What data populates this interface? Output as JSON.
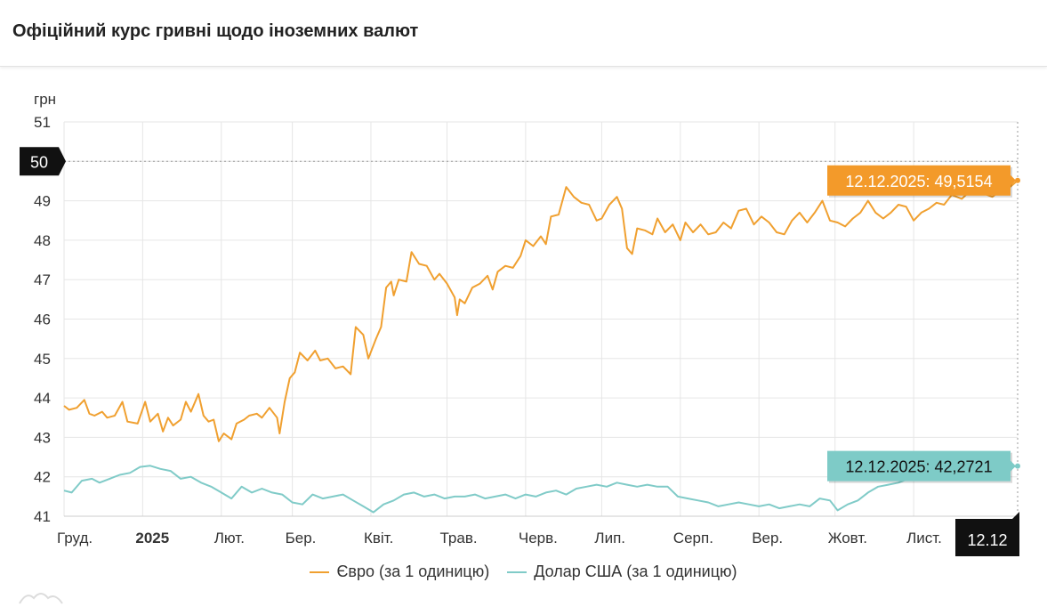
{
  "header": {
    "title": "Офіційний курс гривні щодо іноземних валют"
  },
  "colors": {
    "euro": "#f0a030",
    "usd": "#80cbc8",
    "grid": "#e6e6e6",
    "dark": "#111111"
  },
  "crosshair": {
    "y_label": "50",
    "x_label": "12.12"
  },
  "chart_data": {
    "type": "line",
    "ylabel": "грн",
    "ylim": [
      41,
      51
    ],
    "yticks": [
      "41",
      "42",
      "43",
      "44",
      "45",
      "46",
      "47",
      "48",
      "49",
      "50",
      "51"
    ],
    "x_range": [
      "2024-12-01",
      "2025-12-12"
    ],
    "x_ticks": [
      {
        "date": "2024-12-01",
        "label": "Груд.",
        "bold": false
      },
      {
        "date": "2025-01-01",
        "label": "2025",
        "bold": true
      },
      {
        "date": "2025-02-01",
        "label": "Лют.",
        "bold": false
      },
      {
        "date": "2025-03-01",
        "label": "Бер.",
        "bold": false
      },
      {
        "date": "2025-04-01",
        "label": "Квіт.",
        "bold": false
      },
      {
        "date": "2025-05-01",
        "label": "Трав.",
        "bold": false
      },
      {
        "date": "2025-06-01",
        "label": "Черв.",
        "bold": false
      },
      {
        "date": "2025-07-01",
        "label": "Лип.",
        "bold": false
      },
      {
        "date": "2025-08-01",
        "label": "Серп.",
        "bold": false
      },
      {
        "date": "2025-09-01",
        "label": "Вер.",
        "bold": false
      },
      {
        "date": "2025-10-01",
        "label": "Жовт.",
        "bold": false
      },
      {
        "date": "2025-11-01",
        "label": "Лист.",
        "bold": false
      }
    ],
    "series": [
      {
        "name": "Євро (за 1 одиницю)",
        "color": "#f0a030",
        "tooltip": "12.12.2025: 49,5154",
        "points": [
          [
            "2024-12-01",
            43.8
          ],
          [
            "2024-12-03",
            43.7
          ],
          [
            "2024-12-06",
            43.75
          ],
          [
            "2024-12-09",
            43.95
          ],
          [
            "2024-12-11",
            43.6
          ],
          [
            "2024-12-13",
            43.55
          ],
          [
            "2024-12-16",
            43.65
          ],
          [
            "2024-12-18",
            43.5
          ],
          [
            "2024-12-21",
            43.55
          ],
          [
            "2024-12-24",
            43.9
          ],
          [
            "2024-12-26",
            43.4
          ],
          [
            "2024-12-30",
            43.35
          ],
          [
            "2025-01-02",
            43.9
          ],
          [
            "2025-01-04",
            43.4
          ],
          [
            "2025-01-07",
            43.6
          ],
          [
            "2025-01-09",
            43.15
          ],
          [
            "2025-01-11",
            43.5
          ],
          [
            "2025-01-13",
            43.3
          ],
          [
            "2025-01-16",
            43.45
          ],
          [
            "2025-01-18",
            43.9
          ],
          [
            "2025-01-20",
            43.65
          ],
          [
            "2025-01-23",
            44.1
          ],
          [
            "2025-01-25",
            43.55
          ],
          [
            "2025-01-27",
            43.4
          ],
          [
            "2025-01-29",
            43.45
          ],
          [
            "2025-01-31",
            42.9
          ],
          [
            "2025-02-02",
            43.1
          ],
          [
            "2025-02-05",
            42.95
          ],
          [
            "2025-02-07",
            43.35
          ],
          [
            "2025-02-10",
            43.45
          ],
          [
            "2025-02-12",
            43.55
          ],
          [
            "2025-02-15",
            43.6
          ],
          [
            "2025-02-17",
            43.5
          ],
          [
            "2025-02-20",
            43.75
          ],
          [
            "2025-02-23",
            43.5
          ],
          [
            "2025-02-24",
            43.1
          ],
          [
            "2025-02-26",
            43.9
          ],
          [
            "2025-02-28",
            44.5
          ],
          [
            "2025-03-02",
            44.65
          ],
          [
            "2025-03-04",
            45.15
          ],
          [
            "2025-03-07",
            44.95
          ],
          [
            "2025-03-10",
            45.2
          ],
          [
            "2025-03-12",
            44.95
          ],
          [
            "2025-03-15",
            45.0
          ],
          [
            "2025-03-18",
            44.75
          ],
          [
            "2025-03-21",
            44.8
          ],
          [
            "2025-03-24",
            44.6
          ],
          [
            "2025-03-26",
            45.8
          ],
          [
            "2025-03-29",
            45.6
          ],
          [
            "2025-03-31",
            45.0
          ],
          [
            "2025-04-03",
            45.5
          ],
          [
            "2025-04-05",
            45.8
          ],
          [
            "2025-04-07",
            46.8
          ],
          [
            "2025-04-09",
            46.95
          ],
          [
            "2025-04-10",
            46.6
          ],
          [
            "2025-04-12",
            47.0
          ],
          [
            "2025-04-15",
            46.95
          ],
          [
            "2025-04-17",
            47.7
          ],
          [
            "2025-04-20",
            47.4
          ],
          [
            "2025-04-23",
            47.35
          ],
          [
            "2025-04-26",
            47.0
          ],
          [
            "2025-04-28",
            47.15
          ],
          [
            "2025-05-01",
            46.9
          ],
          [
            "2025-05-04",
            46.55
          ],
          [
            "2025-05-05",
            46.1
          ],
          [
            "2025-05-06",
            46.5
          ],
          [
            "2025-05-08",
            46.4
          ],
          [
            "2025-05-11",
            46.8
          ],
          [
            "2025-05-14",
            46.9
          ],
          [
            "2025-05-17",
            47.1
          ],
          [
            "2025-05-19",
            46.75
          ],
          [
            "2025-05-21",
            47.2
          ],
          [
            "2025-05-24",
            47.35
          ],
          [
            "2025-05-27",
            47.3
          ],
          [
            "2025-05-30",
            47.6
          ],
          [
            "2025-06-01",
            48.0
          ],
          [
            "2025-06-04",
            47.85
          ],
          [
            "2025-06-07",
            48.1
          ],
          [
            "2025-06-09",
            47.9
          ],
          [
            "2025-06-11",
            48.6
          ],
          [
            "2025-06-14",
            48.65
          ],
          [
            "2025-06-17",
            49.35
          ],
          [
            "2025-06-20",
            49.1
          ],
          [
            "2025-06-23",
            48.95
          ],
          [
            "2025-06-26",
            48.9
          ],
          [
            "2025-06-29",
            48.5
          ],
          [
            "2025-07-01",
            48.55
          ],
          [
            "2025-07-04",
            48.9
          ],
          [
            "2025-07-07",
            49.1
          ],
          [
            "2025-07-09",
            48.8
          ],
          [
            "2025-07-11",
            47.8
          ],
          [
            "2025-07-13",
            47.65
          ],
          [
            "2025-07-15",
            48.3
          ],
          [
            "2025-07-18",
            48.25
          ],
          [
            "2025-07-21",
            48.15
          ],
          [
            "2025-07-23",
            48.55
          ],
          [
            "2025-07-26",
            48.2
          ],
          [
            "2025-07-29",
            48.4
          ],
          [
            "2025-08-01",
            48.0
          ],
          [
            "2025-08-03",
            48.45
          ],
          [
            "2025-08-06",
            48.2
          ],
          [
            "2025-08-09",
            48.4
          ],
          [
            "2025-08-12",
            48.15
          ],
          [
            "2025-08-15",
            48.2
          ],
          [
            "2025-08-18",
            48.45
          ],
          [
            "2025-08-21",
            48.3
          ],
          [
            "2025-08-24",
            48.75
          ],
          [
            "2025-08-27",
            48.8
          ],
          [
            "2025-08-30",
            48.4
          ],
          [
            "2025-09-02",
            48.6
          ],
          [
            "2025-09-05",
            48.45
          ],
          [
            "2025-09-08",
            48.2
          ],
          [
            "2025-09-11",
            48.15
          ],
          [
            "2025-09-14",
            48.5
          ],
          [
            "2025-09-17",
            48.7
          ],
          [
            "2025-09-20",
            48.45
          ],
          [
            "2025-09-23",
            48.7
          ],
          [
            "2025-09-26",
            49.0
          ],
          [
            "2025-09-29",
            48.5
          ],
          [
            "2025-10-02",
            48.45
          ],
          [
            "2025-10-05",
            48.35
          ],
          [
            "2025-10-08",
            48.55
          ],
          [
            "2025-10-11",
            48.7
          ],
          [
            "2025-10-14",
            49.0
          ],
          [
            "2025-10-17",
            48.7
          ],
          [
            "2025-10-20",
            48.55
          ],
          [
            "2025-10-23",
            48.7
          ],
          [
            "2025-10-26",
            48.9
          ],
          [
            "2025-10-29",
            48.85
          ],
          [
            "2025-11-01",
            48.5
          ],
          [
            "2025-11-04",
            48.7
          ],
          [
            "2025-11-07",
            48.8
          ],
          [
            "2025-11-10",
            48.95
          ],
          [
            "2025-11-13",
            48.9
          ],
          [
            "2025-11-16",
            49.15
          ],
          [
            "2025-11-20",
            49.05
          ],
          [
            "2025-11-24",
            49.3
          ],
          [
            "2025-11-28",
            49.2
          ],
          [
            "2025-12-02",
            49.1
          ],
          [
            "2025-12-06",
            49.3
          ],
          [
            "2025-12-09",
            49.35
          ],
          [
            "2025-12-12",
            49.5154
          ]
        ]
      },
      {
        "name": "Долар США (за 1 одиницю)",
        "color": "#80cbc8",
        "tooltip": "12.12.2025: 42,2721",
        "points": [
          [
            "2024-12-01",
            41.65
          ],
          [
            "2024-12-04",
            41.6
          ],
          [
            "2024-12-08",
            41.9
          ],
          [
            "2024-12-12",
            41.95
          ],
          [
            "2024-12-15",
            41.85
          ],
          [
            "2024-12-19",
            41.95
          ],
          [
            "2024-12-23",
            42.05
          ],
          [
            "2024-12-27",
            42.1
          ],
          [
            "2024-12-31",
            42.25
          ],
          [
            "2025-01-04",
            42.28
          ],
          [
            "2025-01-08",
            42.2
          ],
          [
            "2025-01-12",
            42.15
          ],
          [
            "2025-01-16",
            41.95
          ],
          [
            "2025-01-20",
            42.0
          ],
          [
            "2025-01-24",
            41.85
          ],
          [
            "2025-01-28",
            41.75
          ],
          [
            "2025-02-01",
            41.6
          ],
          [
            "2025-02-05",
            41.45
          ],
          [
            "2025-02-09",
            41.75
          ],
          [
            "2025-02-13",
            41.6
          ],
          [
            "2025-02-17",
            41.7
          ],
          [
            "2025-02-21",
            41.6
          ],
          [
            "2025-02-25",
            41.55
          ],
          [
            "2025-03-01",
            41.35
          ],
          [
            "2025-03-05",
            41.3
          ],
          [
            "2025-03-09",
            41.55
          ],
          [
            "2025-03-13",
            41.45
          ],
          [
            "2025-03-17",
            41.5
          ],
          [
            "2025-03-21",
            41.55
          ],
          [
            "2025-03-25",
            41.4
          ],
          [
            "2025-03-29",
            41.25
          ],
          [
            "2025-04-02",
            41.1
          ],
          [
            "2025-04-06",
            41.3
          ],
          [
            "2025-04-10",
            41.4
          ],
          [
            "2025-04-14",
            41.55
          ],
          [
            "2025-04-18",
            41.6
          ],
          [
            "2025-04-22",
            41.5
          ],
          [
            "2025-04-26",
            41.55
          ],
          [
            "2025-04-30",
            41.45
          ],
          [
            "2025-05-04",
            41.5
          ],
          [
            "2025-05-08",
            41.5
          ],
          [
            "2025-05-12",
            41.55
          ],
          [
            "2025-05-16",
            41.45
          ],
          [
            "2025-05-20",
            41.5
          ],
          [
            "2025-05-24",
            41.55
          ],
          [
            "2025-05-28",
            41.45
          ],
          [
            "2025-06-01",
            41.55
          ],
          [
            "2025-06-05",
            41.5
          ],
          [
            "2025-06-09",
            41.6
          ],
          [
            "2025-06-13",
            41.65
          ],
          [
            "2025-06-17",
            41.55
          ],
          [
            "2025-06-21",
            41.7
          ],
          [
            "2025-06-25",
            41.75
          ],
          [
            "2025-06-29",
            41.8
          ],
          [
            "2025-07-03",
            41.75
          ],
          [
            "2025-07-07",
            41.85
          ],
          [
            "2025-07-11",
            41.8
          ],
          [
            "2025-07-15",
            41.75
          ],
          [
            "2025-07-19",
            41.8
          ],
          [
            "2025-07-23",
            41.75
          ],
          [
            "2025-07-27",
            41.75
          ],
          [
            "2025-07-31",
            41.5
          ],
          [
            "2025-08-04",
            41.45
          ],
          [
            "2025-08-08",
            41.4
          ],
          [
            "2025-08-12",
            41.35
          ],
          [
            "2025-08-16",
            41.25
          ],
          [
            "2025-08-20",
            41.3
          ],
          [
            "2025-08-24",
            41.35
          ],
          [
            "2025-08-28",
            41.3
          ],
          [
            "2025-09-01",
            41.25
          ],
          [
            "2025-09-05",
            41.3
          ],
          [
            "2025-09-09",
            41.2
          ],
          [
            "2025-09-13",
            41.25
          ],
          [
            "2025-09-17",
            41.3
          ],
          [
            "2025-09-21",
            41.25
          ],
          [
            "2025-09-25",
            41.45
          ],
          [
            "2025-09-29",
            41.4
          ],
          [
            "2025-10-02",
            41.15
          ],
          [
            "2025-10-06",
            41.3
          ],
          [
            "2025-10-10",
            41.4
          ],
          [
            "2025-10-14",
            41.6
          ],
          [
            "2025-10-18",
            41.75
          ],
          [
            "2025-10-22",
            41.8
          ],
          [
            "2025-10-26",
            41.85
          ],
          [
            "2025-10-30",
            41.95
          ],
          [
            "2025-11-03",
            42.0
          ],
          [
            "2025-11-07",
            42.05
          ],
          [
            "2025-11-11",
            42.1
          ],
          [
            "2025-11-15",
            42.15
          ],
          [
            "2025-11-19",
            42.2
          ],
          [
            "2025-11-23",
            42.25
          ],
          [
            "2025-11-27",
            42.3
          ],
          [
            "2025-12-01",
            42.25
          ],
          [
            "2025-12-05",
            42.28
          ],
          [
            "2025-12-09",
            42.25
          ],
          [
            "2025-12-12",
            42.2721
          ]
        ]
      }
    ]
  }
}
